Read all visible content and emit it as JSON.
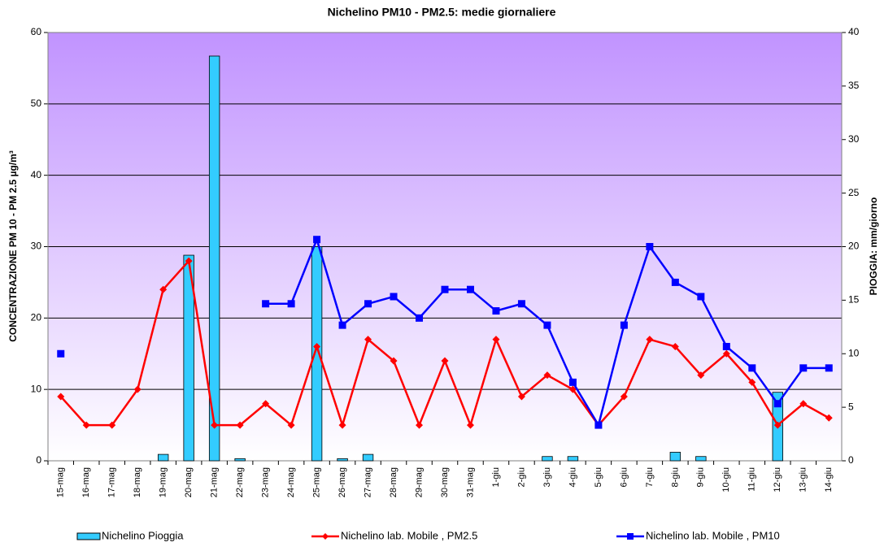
{
  "chart_data": {
    "type": "combo",
    "title": "Nichelino  PM10 - PM2.5: medie giornaliere",
    "ylabel": "CONCENTRAZIONE PM 10 - PM 2.5  µg/m³",
    "y2label": "PIOGGIA: mm/giorno",
    "categories": [
      "15-mag",
      "16-mag",
      "17-mag",
      "18-mag",
      "19-mag",
      "20-mag",
      "21-mag",
      "22-mag",
      "23-mag",
      "24-mag",
      "25-mag",
      "26-mag",
      "27-mag",
      "28-mag",
      "29-mag",
      "30-mag",
      "31-mag",
      "1-giu",
      "2-giu",
      "3-giu",
      "4-giu",
      "5-giu",
      "6-giu",
      "7-giu",
      "8-giu",
      "9-giu",
      "10-giu",
      "11-giu",
      "12-giu",
      "13-giu",
      "14-giu"
    ],
    "series": [
      {
        "name": "Nichelino Pioggia",
        "type": "bar",
        "axis": "y2",
        "color": "#33ccff",
        "values": [
          0,
          0,
          0,
          0,
          0.6,
          19.2,
          37.8,
          0.2,
          0,
          0,
          20,
          0.2,
          0.6,
          0,
          0,
          0,
          0,
          0,
          0,
          0.4,
          0.4,
          0,
          0,
          0,
          0.8,
          0.4,
          0,
          0,
          6.4,
          0,
          0
        ]
      },
      {
        "name": "Nichelino lab. Mobile ,  PM2.5",
        "type": "line",
        "marker": "diamond",
        "color": "#ff0000",
        "values": [
          9,
          5,
          5,
          10,
          24,
          28,
          5,
          5,
          8,
          5,
          16,
          5,
          17,
          14,
          5,
          14,
          5,
          17,
          9,
          12,
          10,
          5,
          9,
          17,
          16,
          12,
          15,
          11,
          5,
          8,
          6
        ]
      },
      {
        "name": "Nichelino lab. Mobile , PM10",
        "type": "line",
        "marker": "square",
        "color": "#0000ff",
        "values": [
          15,
          null,
          null,
          null,
          null,
          null,
          null,
          null,
          22,
          22,
          31,
          19,
          22,
          23,
          20,
          24,
          24,
          21,
          22,
          19,
          11,
          5,
          19,
          30,
          25,
          23,
          16,
          13,
          8,
          13,
          13
        ]
      }
    ],
    "ylim": [
      0,
      60
    ],
    "yticks": [
      0,
      10,
      20,
      30,
      40,
      50,
      60
    ],
    "y2lim": [
      0,
      40
    ],
    "y2ticks": [
      0,
      5,
      10,
      15,
      20,
      25,
      30,
      35,
      40
    ],
    "grid": true
  }
}
